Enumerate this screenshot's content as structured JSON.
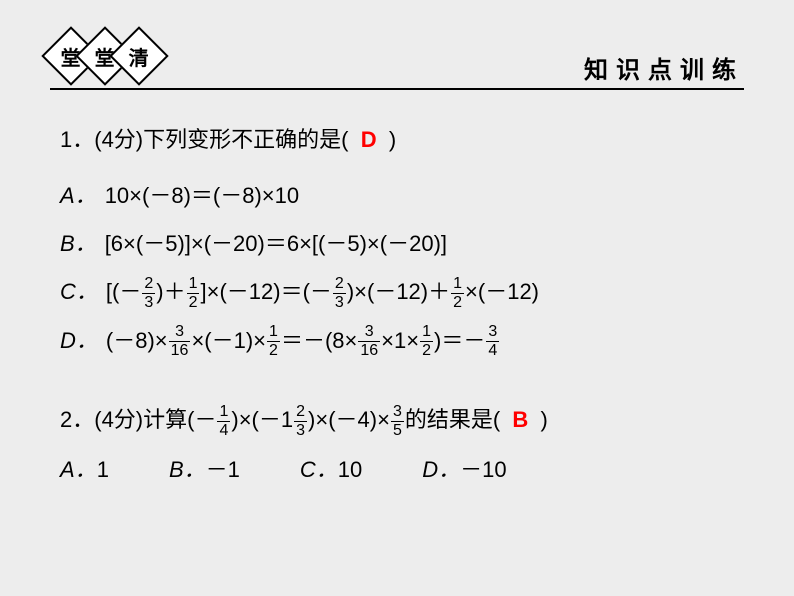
{
  "header": {
    "diamonds": [
      "堂",
      "堂",
      "清"
    ],
    "right_text": "知识点训练"
  },
  "q1": {
    "number": "1．",
    "points": "(4分)",
    "stem": "下列变形不正确的是(",
    "answer": "D",
    "close": ")",
    "optA": {
      "label": "A．",
      "text": "10×(－8)＝(－8)×10"
    },
    "optB": {
      "label": "B．",
      "text": "[6×(－5)]×(－20)＝6×[(－5)×(－20)]"
    },
    "optC": {
      "label": "C．",
      "pre": "[(－",
      "f1n": "2",
      "f1d": "3",
      "m1": ")＋",
      "f2n": "1",
      "f2d": "2",
      "m2": "]×(－12)＝(－",
      "f3n": "2",
      "f3d": "3",
      "m3": ")×(－12)＋",
      "f4n": "1",
      "f4d": "2",
      "post": "×(－12)"
    },
    "optD": {
      "label": "D．",
      "pre": "(－8)×",
      "f1n": "3",
      "f1d": "16",
      "m1": "×(－1)×",
      "f2n": "1",
      "f2d": "2",
      "m2": "＝－(8×",
      "f3n": "3",
      "f3d": "16",
      "m3": "×1×",
      "f4n": "1",
      "f4d": "2",
      "m4": ")＝－",
      "f5n": "3",
      "f5d": "4"
    }
  },
  "q2": {
    "number": "2．",
    "points": "(4分)",
    "stem_pre": "计算(－",
    "f1n": "1",
    "f1d": "4",
    "m1": ")×(－1",
    "f2n": "2",
    "f2d": "3",
    "m2": ")×(－4)×",
    "f3n": "3",
    "f3d": "5",
    "stem_post": "的结果是(",
    "answer": "B",
    "close": ")",
    "optA_l": "A．",
    "optA_v": "1",
    "optB_l": "B．",
    "optB_v": "－1",
    "optC_l": "C．",
    "optC_v": "10",
    "optD_l": "D．",
    "optD_v": "－10"
  },
  "colors": {
    "background": "#ededed",
    "text": "#000000",
    "answer": "#ff0000"
  }
}
